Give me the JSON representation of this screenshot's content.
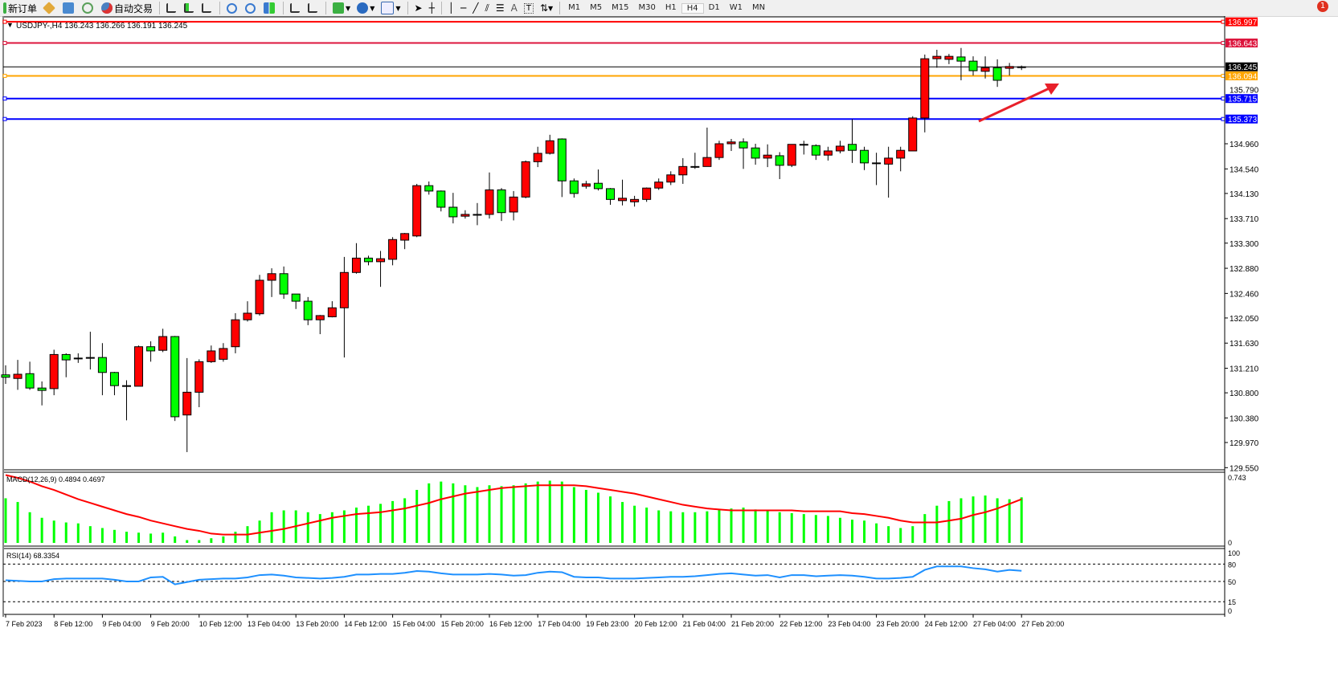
{
  "toolbar": {
    "new_order_label": "新订单",
    "auto_trading_label": "自动交易",
    "periods": [
      "M1",
      "M5",
      "M15",
      "M30",
      "H1",
      "H4",
      "D1",
      "W1",
      "MN"
    ],
    "active_period": "H4",
    "notification_count": "1"
  },
  "chart": {
    "header": "USDJPY-,H4  136.243 136.266 136.191 136.245",
    "colors": {
      "bull": "#ff0000",
      "bear": "#00ff00",
      "macd_hist": "#00ff00",
      "macd_signal": "#ff0000",
      "rsi": "#1e90ff"
    },
    "price_ticks": [
      "134.960",
      "134.540",
      "134.130",
      "133.710",
      "133.300",
      "132.880",
      "132.460",
      "132.050",
      "131.630",
      "131.210",
      "130.800",
      "130.380",
      "129.970",
      "129.550"
    ],
    "hidden_tick": "135.790",
    "hlines": [
      {
        "price": 136.997,
        "label": "136.997",
        "color": "#ff0000"
      },
      {
        "price": 136.643,
        "label": "136.643",
        "color": "#dc143c"
      },
      {
        "price": 136.245,
        "label": "136.245",
        "color": "#000000"
      },
      {
        "price": 136.094,
        "label": "136.094",
        "color": "#ffa500"
      },
      {
        "price": 135.715,
        "label": "135.715",
        "color": "#0000ff"
      },
      {
        "price": 135.373,
        "label": "135.373",
        "color": "#0000ff"
      }
    ],
    "arrow_color": "#e8202a",
    "ohlc": [
      [
        131.1,
        131.26,
        130.95,
        131.06
      ],
      [
        131.04,
        131.35,
        130.85,
        131.11
      ],
      [
        131.12,
        131.32,
        130.85,
        130.88
      ],
      [
        130.88,
        130.99,
        130.59,
        130.84
      ],
      [
        130.87,
        131.52,
        130.76,
        131.44
      ],
      [
        131.44,
        131.46,
        131.06,
        131.35
      ],
      [
        131.38,
        131.46,
        131.3,
        131.38
      ],
      [
        131.39,
        131.82,
        131.19,
        131.39
      ],
      [
        131.39,
        131.63,
        130.76,
        131.14
      ],
      [
        131.14,
        131.15,
        130.76,
        130.92
      ],
      [
        130.92,
        131.01,
        130.34,
        130.91
      ],
      [
        130.91,
        131.59,
        130.91,
        131.57
      ],
      [
        131.57,
        131.66,
        131.32,
        131.5
      ],
      [
        131.51,
        131.87,
        131.48,
        131.74
      ],
      [
        131.74,
        131.75,
        130.33,
        130.4
      ],
      [
        130.43,
        131.38,
        129.81,
        130.81
      ],
      [
        130.81,
        131.36,
        130.56,
        131.32
      ],
      [
        131.32,
        131.59,
        131.3,
        131.5
      ],
      [
        131.36,
        131.63,
        131.32,
        131.54
      ],
      [
        131.57,
        132.13,
        131.46,
        132.02
      ],
      [
        132.02,
        132.33,
        131.99,
        132.13
      ],
      [
        132.12,
        132.77,
        132.09,
        132.68
      ],
      [
        132.68,
        132.88,
        132.4,
        132.79
      ],
      [
        132.79,
        132.91,
        132.37,
        132.45
      ],
      [
        132.45,
        132.45,
        132.2,
        132.33
      ],
      [
        132.33,
        132.4,
        131.93,
        132.02
      ],
      [
        132.02,
        132.1,
        131.78,
        132.09
      ],
      [
        132.07,
        132.33,
        132.06,
        132.22
      ],
      [
        132.22,
        133.07,
        131.39,
        132.81
      ],
      [
        132.81,
        133.3,
        132.79,
        133.05
      ],
      [
        133.05,
        133.09,
        132.93,
        132.99
      ],
      [
        132.99,
        133.17,
        132.57,
        133.04
      ],
      [
        133.03,
        133.4,
        132.93,
        133.36
      ],
      [
        133.35,
        133.47,
        133.2,
        133.46
      ],
      [
        133.42,
        134.29,
        133.4,
        134.26
      ],
      [
        134.26,
        134.33,
        134.11,
        134.17
      ],
      [
        134.17,
        134.18,
        133.83,
        133.9
      ],
      [
        133.9,
        134.14,
        133.63,
        133.74
      ],
      [
        133.75,
        133.85,
        133.71,
        133.78
      ],
      [
        133.78,
        133.97,
        133.6,
        133.78
      ],
      [
        133.78,
        134.48,
        133.71,
        134.19
      ],
      [
        134.19,
        134.22,
        133.67,
        133.81
      ],
      [
        133.82,
        134.17,
        133.68,
        134.07
      ],
      [
        134.07,
        134.68,
        134.05,
        134.66
      ],
      [
        134.66,
        134.91,
        134.57,
        134.8
      ],
      [
        134.8,
        135.11,
        134.78,
        135.01
      ],
      [
        135.04,
        135.05,
        134.07,
        134.34
      ],
      [
        134.34,
        134.38,
        134.06,
        134.13
      ],
      [
        134.25,
        134.34,
        134.21,
        134.29
      ],
      [
        134.3,
        134.53,
        134.18,
        134.21
      ],
      [
        134.21,
        134.22,
        133.94,
        134.03
      ],
      [
        134.01,
        134.36,
        133.93,
        134.05
      ],
      [
        133.99,
        134.09,
        133.91,
        134.03
      ],
      [
        134.03,
        134.23,
        133.99,
        134.22
      ],
      [
        134.22,
        134.38,
        134.19,
        134.32
      ],
      [
        134.32,
        134.5,
        134.27,
        134.44
      ],
      [
        134.44,
        134.72,
        134.29,
        134.58
      ],
      [
        134.58,
        134.81,
        134.54,
        134.58
      ],
      [
        134.58,
        135.23,
        134.58,
        134.73
      ],
      [
        134.73,
        135.01,
        134.69,
        134.96
      ],
      [
        134.96,
        135.04,
        134.84,
        134.99
      ],
      [
        134.99,
        135.05,
        134.54,
        134.89
      ],
      [
        134.89,
        134.96,
        134.61,
        134.72
      ],
      [
        134.72,
        134.95,
        134.57,
        134.77
      ],
      [
        134.76,
        134.82,
        134.37,
        134.6
      ],
      [
        134.6,
        134.95,
        134.57,
        134.95
      ],
      [
        134.95,
        135.01,
        134.78,
        134.95
      ],
      [
        134.93,
        134.95,
        134.69,
        134.77
      ],
      [
        134.77,
        134.91,
        134.68,
        134.84
      ],
      [
        134.84,
        135.01,
        134.8,
        134.92
      ],
      [
        134.95,
        135.37,
        134.64,
        134.85
      ],
      [
        134.85,
        134.91,
        134.52,
        134.64
      ],
      [
        134.64,
        134.81,
        134.27,
        134.64
      ],
      [
        134.62,
        134.91,
        134.06,
        134.72
      ],
      [
        134.72,
        134.91,
        134.5,
        134.85
      ],
      [
        134.84,
        135.42,
        134.84,
        135.39
      ],
      [
        135.39,
        136.45,
        135.15,
        136.38
      ],
      [
        136.38,
        136.53,
        136.23,
        136.42
      ],
      [
        136.37,
        136.46,
        136.29,
        136.42
      ],
      [
        136.41,
        136.56,
        136.02,
        136.34
      ],
      [
        136.34,
        136.42,
        136.1,
        136.18
      ],
      [
        136.17,
        136.42,
        136.05,
        136.23
      ],
      [
        136.23,
        136.37,
        135.91,
        136.02
      ],
      [
        136.22,
        136.31,
        136.1,
        136.25
      ],
      [
        136.243,
        136.266,
        136.191,
        136.245
      ]
    ],
    "time_labels": [
      "7 Feb 2023",
      "8 Feb 12:00",
      "9 Feb 04:00",
      "9 Feb 20:00",
      "10 Feb 12:00",
      "13 Feb 04:00",
      "13 Feb 20:00",
      "14 Feb 12:00",
      "15 Feb 04:00",
      "15 Feb 20:00",
      "16 Feb 12:00",
      "17 Feb 04:00",
      "19 Feb 23:00",
      "20 Feb 12:00",
      "21 Feb 04:00",
      "21 Feb 20:00",
      "22 Feb 12:00",
      "23 Feb 04:00",
      "23 Feb 20:00",
      "24 Feb 12:00",
      "27 Feb 04:00",
      "27 Feb 20:00"
    ]
  },
  "macd": {
    "header": "MACD(12,26,9) 0.4894 0.4697",
    "max_label": "0.743",
    "zero_label": "0",
    "max": 0.743,
    "hist": [
      0.48,
      0.44,
      0.33,
      0.27,
      0.24,
      0.22,
      0.21,
      0.18,
      0.16,
      0.14,
      0.12,
      0.11,
      0.1,
      0.11,
      0.07,
      0.03,
      0.03,
      0.05,
      0.07,
      0.12,
      0.18,
      0.24,
      0.33,
      0.35,
      0.35,
      0.33,
      0.31,
      0.33,
      0.35,
      0.38,
      0.4,
      0.42,
      0.45,
      0.48,
      0.57,
      0.64,
      0.66,
      0.64,
      0.62,
      0.6,
      0.62,
      0.61,
      0.62,
      0.64,
      0.66,
      0.67,
      0.66,
      0.6,
      0.57,
      0.54,
      0.5,
      0.44,
      0.4,
      0.38,
      0.35,
      0.34,
      0.33,
      0.33,
      0.34,
      0.36,
      0.37,
      0.38,
      0.36,
      0.35,
      0.33,
      0.32,
      0.31,
      0.3,
      0.29,
      0.27,
      0.25,
      0.24,
      0.21,
      0.18,
      0.16,
      0.18,
      0.31,
      0.4,
      0.45,
      0.48,
      0.5,
      0.51,
      0.48,
      0.47,
      0.49
    ],
    "signal": [
      0.73,
      0.7,
      0.66,
      0.61,
      0.57,
      0.52,
      0.47,
      0.43,
      0.39,
      0.35,
      0.31,
      0.28,
      0.24,
      0.21,
      0.18,
      0.15,
      0.13,
      0.1,
      0.09,
      0.09,
      0.09,
      0.11,
      0.13,
      0.15,
      0.18,
      0.21,
      0.24,
      0.27,
      0.29,
      0.31,
      0.32,
      0.33,
      0.35,
      0.37,
      0.4,
      0.43,
      0.47,
      0.5,
      0.53,
      0.55,
      0.57,
      0.59,
      0.6,
      0.61,
      0.62,
      0.62,
      0.62,
      0.62,
      0.61,
      0.59,
      0.57,
      0.55,
      0.53,
      0.5,
      0.47,
      0.44,
      0.41,
      0.39,
      0.37,
      0.36,
      0.35,
      0.35,
      0.35,
      0.35,
      0.35,
      0.35,
      0.34,
      0.34,
      0.34,
      0.34,
      0.32,
      0.31,
      0.29,
      0.27,
      0.24,
      0.22,
      0.22,
      0.22,
      0.24,
      0.26,
      0.3,
      0.33,
      0.37,
      0.42,
      0.47
    ]
  },
  "rsi": {
    "header": "RSI(14) 68.3354",
    "levels": [
      80,
      50,
      15
    ],
    "axis_labels": [
      "100",
      "80",
      "50",
      "15",
      "0"
    ],
    "values": [
      52,
      51,
      50,
      50,
      54,
      55,
      55,
      55,
      55,
      53,
      50,
      50,
      57,
      58,
      45,
      49,
      53,
      54,
      55,
      55,
      57,
      61,
      62,
      60,
      57,
      56,
      55,
      56,
      58,
      62,
      62,
      63,
      63,
      65,
      68,
      67,
      64,
      62,
      62,
      62,
      63,
      62,
      60,
      61,
      65,
      67,
      66,
      58,
      57,
      57,
      55,
      55,
      55,
      56,
      57,
      58,
      58,
      59,
      61,
      63,
      64,
      62,
      60,
      61,
      57,
      61,
      61,
      59,
      60,
      61,
      60,
      58,
      55,
      55,
      56,
      58,
      70,
      76,
      76,
      76,
      73,
      71,
      67,
      70,
      68.34
    ]
  }
}
